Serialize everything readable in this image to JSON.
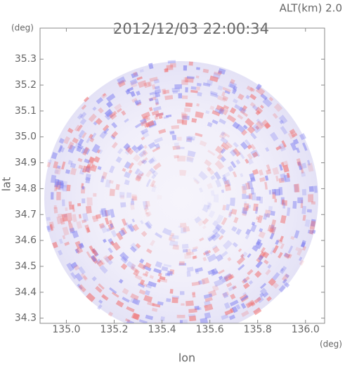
{
  "chart_data": {
    "type": "radar-image",
    "title": "2012/12/03 22:00:34",
    "subtitle": "ALT(km)  2.0",
    "x_label": "lon",
    "y_label": "lat",
    "x_unit": "(deg)",
    "y_unit": "(deg)",
    "xlim": [
      134.89,
      136.08
    ],
    "ylim": [
      34.28,
      35.42
    ],
    "xticks": [
      {
        "value": 135.0,
        "label": "135.0"
      },
      135.2,
      135.4,
      135.6,
      135.8,
      {
        "value": 136.0,
        "label": "136.0"
      }
    ],
    "yticks": [
      34.3,
      34.4,
      34.5,
      34.6,
      34.7,
      34.8,
      34.9,
      {
        "value": 35.0,
        "label": "35.0"
      },
      35.1,
      35.2,
      35.3
    ]
  }
}
